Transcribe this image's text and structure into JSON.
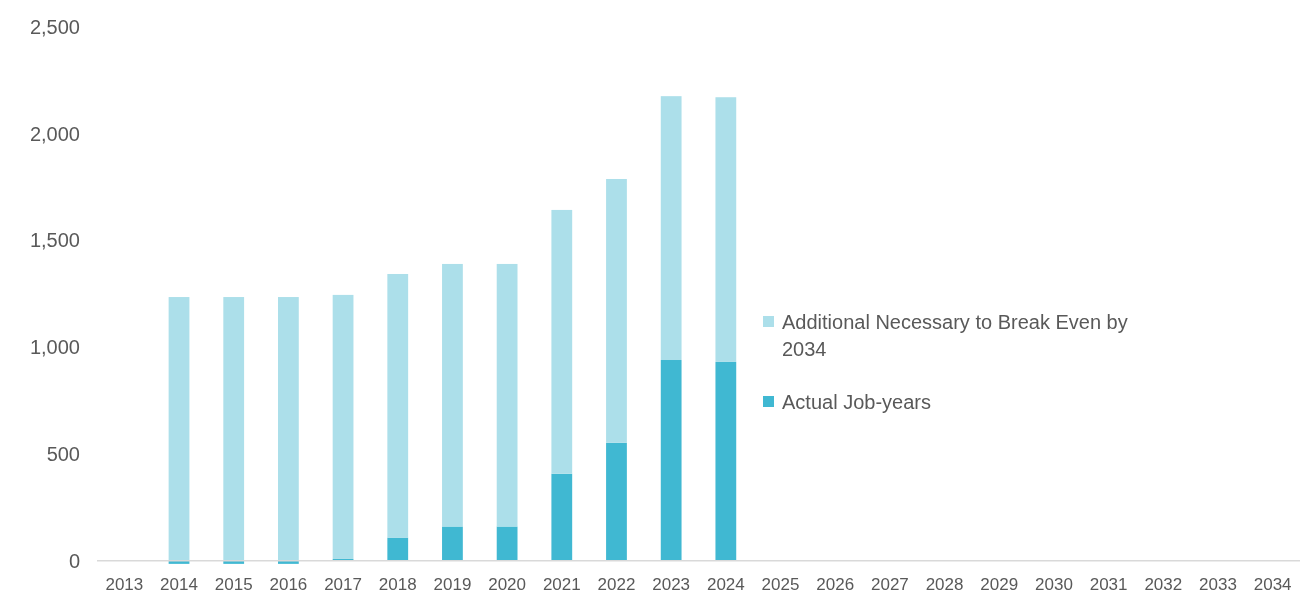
{
  "chart_data": {
    "type": "bar",
    "stacked": true,
    "categories": [
      "2013",
      "2014",
      "2015",
      "2016",
      "2017",
      "2018",
      "2019",
      "2020",
      "2021",
      "2022",
      "2023",
      "2024",
      "2025",
      "2026",
      "2027",
      "2028",
      "2029",
      "2030",
      "2031",
      "2032",
      "2033",
      "2034"
    ],
    "series": [
      {
        "name": "Actual Job-years",
        "color": "#40b8d2",
        "values": [
          null,
          -15,
          -15,
          -15,
          8,
          108,
          160,
          160,
          407,
          552,
          940,
          931,
          null,
          null,
          null,
          null,
          null,
          null,
          null,
          null,
          null,
          null
        ]
      },
      {
        "name": "Additional Necessary to Break Even by 2034",
        "color": "#acdfea",
        "values": [
          null,
          1235,
          1235,
          1235,
          1237,
          1235,
          1230,
          1230,
          1236,
          1236,
          1236,
          1240,
          null,
          null,
          null,
          null,
          null,
          null,
          null,
          null,
          null,
          null
        ]
      }
    ],
    "ylim": [
      -25,
      2500
    ],
    "yticks": [
      {
        "value": 0,
        "label": "0"
      },
      {
        "value": 500,
        "label": "500"
      },
      {
        "value": 1000,
        "label": "1,000"
      },
      {
        "value": 1500,
        "label": "1,500"
      },
      {
        "value": 2000,
        "label": "2,000"
      },
      {
        "value": 2500,
        "label": "2,500"
      }
    ],
    "grid": false,
    "legend": "right"
  }
}
